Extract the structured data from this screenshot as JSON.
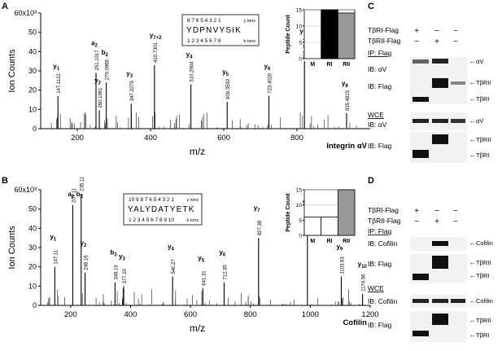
{
  "chart_data": [
    {
      "type": "bar",
      "panel": "A",
      "title": "Integrin αV",
      "xlabel": "m/z",
      "ylabel": "Ion Counts",
      "y_exponent_label": "60x10³",
      "xlim": [
        100,
        1000
      ],
      "ylim": [
        0,
        60000
      ],
      "xticks": [
        "200",
        "400",
        "600",
        "800"
      ],
      "yticks": [
        "0",
        "10",
        "20",
        "30",
        "40",
        "50",
        "60x10³"
      ],
      "peptide": "YDPNVYSIK",
      "y_ions_numbers": "8 7 6 5 4 3 2 1",
      "b_ions_numbers": "1 2 3 4 5 6 7 8",
      "y_ions_label": "y ions",
      "b_ions_label": "b ions",
      "peaks": [
        {
          "mz": 147.11,
          "label": "147.1122",
          "ion": "y1",
          "value": 17000
        },
        {
          "mz": 251.1,
          "label": "251.1017",
          "ion": "a2",
          "value": 29000
        },
        {
          "mz": 260.19,
          "label": "260.1961",
          "ion": "y2",
          "value": 9500
        },
        {
          "mz": 279.1,
          "label": "279.0966",
          "ion": "b2",
          "value": 24000
        },
        {
          "mz": 347.23,
          "label": "347.2279",
          "ion": "y3",
          "value": 13000
        },
        {
          "mz": 410.73,
          "label": "410.7301",
          "ion": "y7+2",
          "value": 33000
        },
        {
          "mz": 510.29,
          "label": "510.2904",
          "ion": "y4",
          "value": 23000
        },
        {
          "mz": 609.36,
          "label": "609.3592",
          "ion": "y5",
          "value": 14000
        },
        {
          "mz": 723.4,
          "label": "723.4020",
          "ion": "y6",
          "value": 17000
        },
        {
          "mz": 820.45,
          "label": "820.4544",
          "ion": "y7",
          "value": 35000
        },
        {
          "mz": 935.48,
          "label": "935.4815",
          "ion": "y8",
          "value": 8000
        }
      ],
      "inset": {
        "type": "bar",
        "ylabel": "Peptide Count",
        "categories": [
          "M",
          "RI",
          "RII"
        ],
        "values": [
          0,
          15,
          14
        ],
        "ylim": [
          0,
          15
        ],
        "yticks": [
          "0",
          "5",
          "10",
          "15"
        ],
        "colors": [
          "#ffffff",
          "#000000",
          "#999999"
        ]
      }
    },
    {
      "type": "bar",
      "panel": "B",
      "title": "Cofilin",
      "xlabel": "m/z",
      "ylabel": "Ion Counts",
      "y_exponent_label": "60x10³",
      "xlim": [
        100,
        1200
      ],
      "ylim": [
        0,
        60000
      ],
      "xticks": [
        "200",
        "400",
        "600",
        "800",
        "1000",
        "1200"
      ],
      "yticks": [
        "0",
        "10",
        "20",
        "30",
        "40",
        "50",
        "60x10³"
      ],
      "peptide": "YALYDATYETK",
      "y_ions_numbers": "10 9 8 7 6 5 4 3 2 1",
      "b_ions_numbers": "1 2 3 4 5 6 7 8 9 10",
      "y_ions_label": "y ions",
      "b_ions_label": "b ions",
      "peaks": [
        {
          "mz": 147.11,
          "label": "147.11",
          "ion": "y1",
          "value": 20000
        },
        {
          "mz": 207.11,
          "label": "207.11",
          "ion": "a2",
          "value": 52000
        },
        {
          "mz": 235.11,
          "label": "235.11",
          "ion": "b2",
          "value": 58000
        },
        {
          "mz": 248.16,
          "label": "248.16",
          "ion": "y2",
          "value": 17000
        },
        {
          "mz": 348.19,
          "label": "348.19",
          "ion": "b3",
          "value": 12000
        },
        {
          "mz": 377.2,
          "label": "377.20",
          "ion": "y3",
          "value": 10000
        },
        {
          "mz": 540.27,
          "label": "540.27",
          "ion": "y4",
          "value": 15000
        },
        {
          "mz": 641.31,
          "label": "641.31",
          "ion": "y5",
          "value": 9000
        },
        {
          "mz": 712.35,
          "label": "712.35",
          "ion": "y6",
          "value": 12000
        },
        {
          "mz": 827.38,
          "label": "827.38",
          "ion": "y7",
          "value": 35000
        },
        {
          "mz": 990.44,
          "label": "990.44",
          "ion": "y8",
          "value": 38000
        },
        {
          "mz": 1103.53,
          "label": "1103.53",
          "ion": "y9",
          "value": 15000
        },
        {
          "mz": 1174.56,
          "label": "1174.56",
          "ion": "y10",
          "value": 6000
        }
      ],
      "inset": {
        "type": "bar",
        "ylabel": "Peptide Count",
        "categories": [
          "M",
          "RI",
          "RII"
        ],
        "values": [
          6,
          6,
          15
        ],
        "ylim": [
          0,
          15
        ],
        "yticks": [
          "0",
          "5",
          "10",
          "15"
        ],
        "colors": [
          "#ffffff",
          "#ffffff",
          "#999999"
        ]
      }
    }
  ],
  "panel_labels": {
    "a": "A",
    "b": "B",
    "c": "C",
    "d": "D"
  },
  "blot_c": {
    "cond1": "TβRI-Flag",
    "cond2": "TβRII-Flag",
    "cond1_marks": [
      "+",
      "−",
      "−"
    ],
    "cond2_marks": [
      "−",
      "+",
      "−"
    ],
    "ip_header": "IP: Flag",
    "wce_header": "WCE",
    "rows": [
      {
        "label": "IB: αV",
        "arrows": [
          "αV"
        ]
      },
      {
        "label": "IB: Flag",
        "arrows": [
          "TβRII",
          "TβRI"
        ]
      },
      {
        "label": "IB: αV",
        "arrows": [
          "αV"
        ]
      },
      {
        "label": "IB: Flag",
        "arrows": [
          "TβRII",
          "TβRI"
        ]
      }
    ]
  },
  "blot_d": {
    "cond1": "TβRI-Flag",
    "cond2": "TβRII-Flag",
    "cond1_marks": [
      "+",
      "−",
      "−"
    ],
    "cond2_marks": [
      "−",
      "+",
      "−"
    ],
    "ip_header": "IP: Flag",
    "wce_header": "WCE",
    "rows": [
      {
        "label": "IB: Cofilin",
        "arrows": [
          "Cofilin"
        ]
      },
      {
        "label": "IB: Flag",
        "arrows": [
          "TβRII",
          "TβRI"
        ]
      },
      {
        "label": "IB: Cofilin",
        "arrows": [
          "Cofilin"
        ]
      },
      {
        "label": "IB: Flag",
        "arrows": [
          "TβRII",
          "TβRI"
        ]
      }
    ]
  }
}
